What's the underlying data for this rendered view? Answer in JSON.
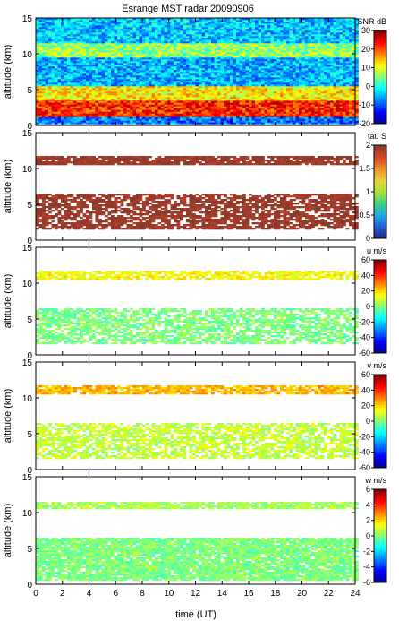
{
  "figure_title": "Esrange MST radar 20090906",
  "colors": {
    "jet": [
      "#00008f",
      "#0000ff",
      "#0080ff",
      "#00ffff",
      "#80ff80",
      "#ffff00",
      "#ff8000",
      "#ff0000",
      "#800000"
    ],
    "tau": [
      "#22227a",
      "#1f5fd6",
      "#20a8e6",
      "#3ccf7f",
      "#a8e03c",
      "#e8d43a",
      "#e8902a",
      "#d8402a",
      "#8a3a2a"
    ]
  },
  "chart_data": [
    {
      "type": "heatmap",
      "panel": "snr",
      "ylabel": "altitude (km)",
      "xlabel": "",
      "xlim": [
        0,
        24
      ],
      "ylim": [
        0,
        15
      ],
      "x_ticks": [
        "0",
        "2",
        "4",
        "6",
        "8",
        "10",
        "12",
        "14",
        "16",
        "18",
        "20",
        "22",
        "24"
      ],
      "y_ticks": [
        "0",
        "5",
        "10",
        "15"
      ],
      "colorbar": {
        "label": "SNR dB",
        "range": [
          -20,
          30
        ],
        "ticks": [
          "30",
          "20",
          "10",
          "0",
          "-10",
          "-20"
        ],
        "palette": "jet"
      },
      "layers": [
        {
          "alt": [
            0.2,
            1.2
          ],
          "value": -8,
          "coverage": 1.0
        },
        {
          "alt": [
            1.2,
            3.5
          ],
          "value": 22,
          "coverage": 1.0
        },
        {
          "alt": [
            3.5,
            5.5
          ],
          "value": 12,
          "coverage": 1.0
        },
        {
          "alt": [
            5.5,
            9.5
          ],
          "value": -5,
          "coverage": 1.0
        },
        {
          "alt": [
            9.5,
            11.5
          ],
          "value": 6,
          "coverage": 1.0
        },
        {
          "alt": [
            11.5,
            15
          ],
          "value": -4,
          "coverage": 1.0
        }
      ]
    },
    {
      "type": "heatmap",
      "panel": "tau",
      "ylabel": "altitude (km)",
      "xlabel": "",
      "xlim": [
        0,
        24
      ],
      "ylim": [
        0,
        15
      ],
      "x_ticks": [
        "0",
        "2",
        "4",
        "6",
        "8",
        "10",
        "12",
        "14",
        "16",
        "18",
        "20",
        "22",
        "24"
      ],
      "y_ticks": [
        "0",
        "5",
        "10",
        "15"
      ],
      "colorbar": {
        "label": "tau S",
        "range": [
          0,
          2
        ],
        "ticks": [
          "2",
          "1.5",
          "1",
          "0.5",
          "0"
        ],
        "palette": "tau"
      },
      "layers": [
        {
          "alt": [
            1.5,
            6.5
          ],
          "value": 1.95,
          "coverage": 0.72
        },
        {
          "alt": [
            10.5,
            11.7
          ],
          "value": 1.95,
          "coverage": 0.85
        }
      ]
    },
    {
      "type": "heatmap",
      "panel": "u",
      "ylabel": "altitude (km)",
      "xlabel": "",
      "xlim": [
        0,
        24
      ],
      "ylim": [
        0,
        15
      ],
      "x_ticks": [
        "0",
        "2",
        "4",
        "6",
        "8",
        "10",
        "12",
        "14",
        "16",
        "18",
        "20",
        "22",
        "24"
      ],
      "y_ticks": [
        "0",
        "5",
        "10",
        "15"
      ],
      "colorbar": {
        "label": "u m/s",
        "range": [
          -60,
          60
        ],
        "ticks": [
          "60",
          "40",
          "20",
          "0",
          "-20",
          "-40",
          "-60"
        ],
        "palette": "jet"
      },
      "layers": [
        {
          "alt": [
            1.5,
            6.5
          ],
          "value": 0,
          "coverage": 0.68
        },
        {
          "alt": [
            10.5,
            11.7
          ],
          "value": 15,
          "coverage": 0.8
        }
      ]
    },
    {
      "type": "heatmap",
      "panel": "v",
      "ylabel": "altitude (km)",
      "xlabel": "",
      "xlim": [
        0,
        24
      ],
      "ylim": [
        0,
        15
      ],
      "x_ticks": [
        "0",
        "2",
        "4",
        "6",
        "8",
        "10",
        "12",
        "14",
        "16",
        "18",
        "20",
        "22",
        "24"
      ],
      "y_ticks": [
        "0",
        "5",
        "10",
        "15"
      ],
      "colorbar": {
        "label": "v m/s",
        "range": [
          -60,
          60
        ],
        "ticks": [
          "60",
          "40",
          "20",
          "0",
          "-20",
          "-40",
          "-60"
        ],
        "palette": "jet"
      },
      "layers": [
        {
          "alt": [
            1.5,
            6.5
          ],
          "value": 8,
          "coverage": 0.68
        },
        {
          "alt": [
            10.5,
            11.7
          ],
          "value": 24,
          "coverage": 0.8
        }
      ]
    },
    {
      "type": "heatmap",
      "panel": "w",
      "ylabel": "altitude (km)",
      "xlabel": "time (UT)",
      "xlim": [
        0,
        24
      ],
      "ylim": [
        0,
        15
      ],
      "x_ticks": [
        "0",
        "2",
        "4",
        "6",
        "8",
        "10",
        "12",
        "14",
        "16",
        "18",
        "20",
        "22",
        "24"
      ],
      "y_ticks": [
        "0",
        "5",
        "10",
        "15"
      ],
      "colorbar": {
        "label": "w m/s",
        "range": [
          -6,
          6
        ],
        "ticks": [
          "6",
          "4",
          "2",
          "0",
          "-2",
          "-4",
          "-6"
        ],
        "palette": "jet"
      },
      "layers": [
        {
          "alt": [
            0.5,
            6.5
          ],
          "value": 0,
          "coverage": 0.9
        },
        {
          "alt": [
            10.5,
            11.5
          ],
          "value": 0.5,
          "coverage": 0.85
        }
      ]
    }
  ]
}
